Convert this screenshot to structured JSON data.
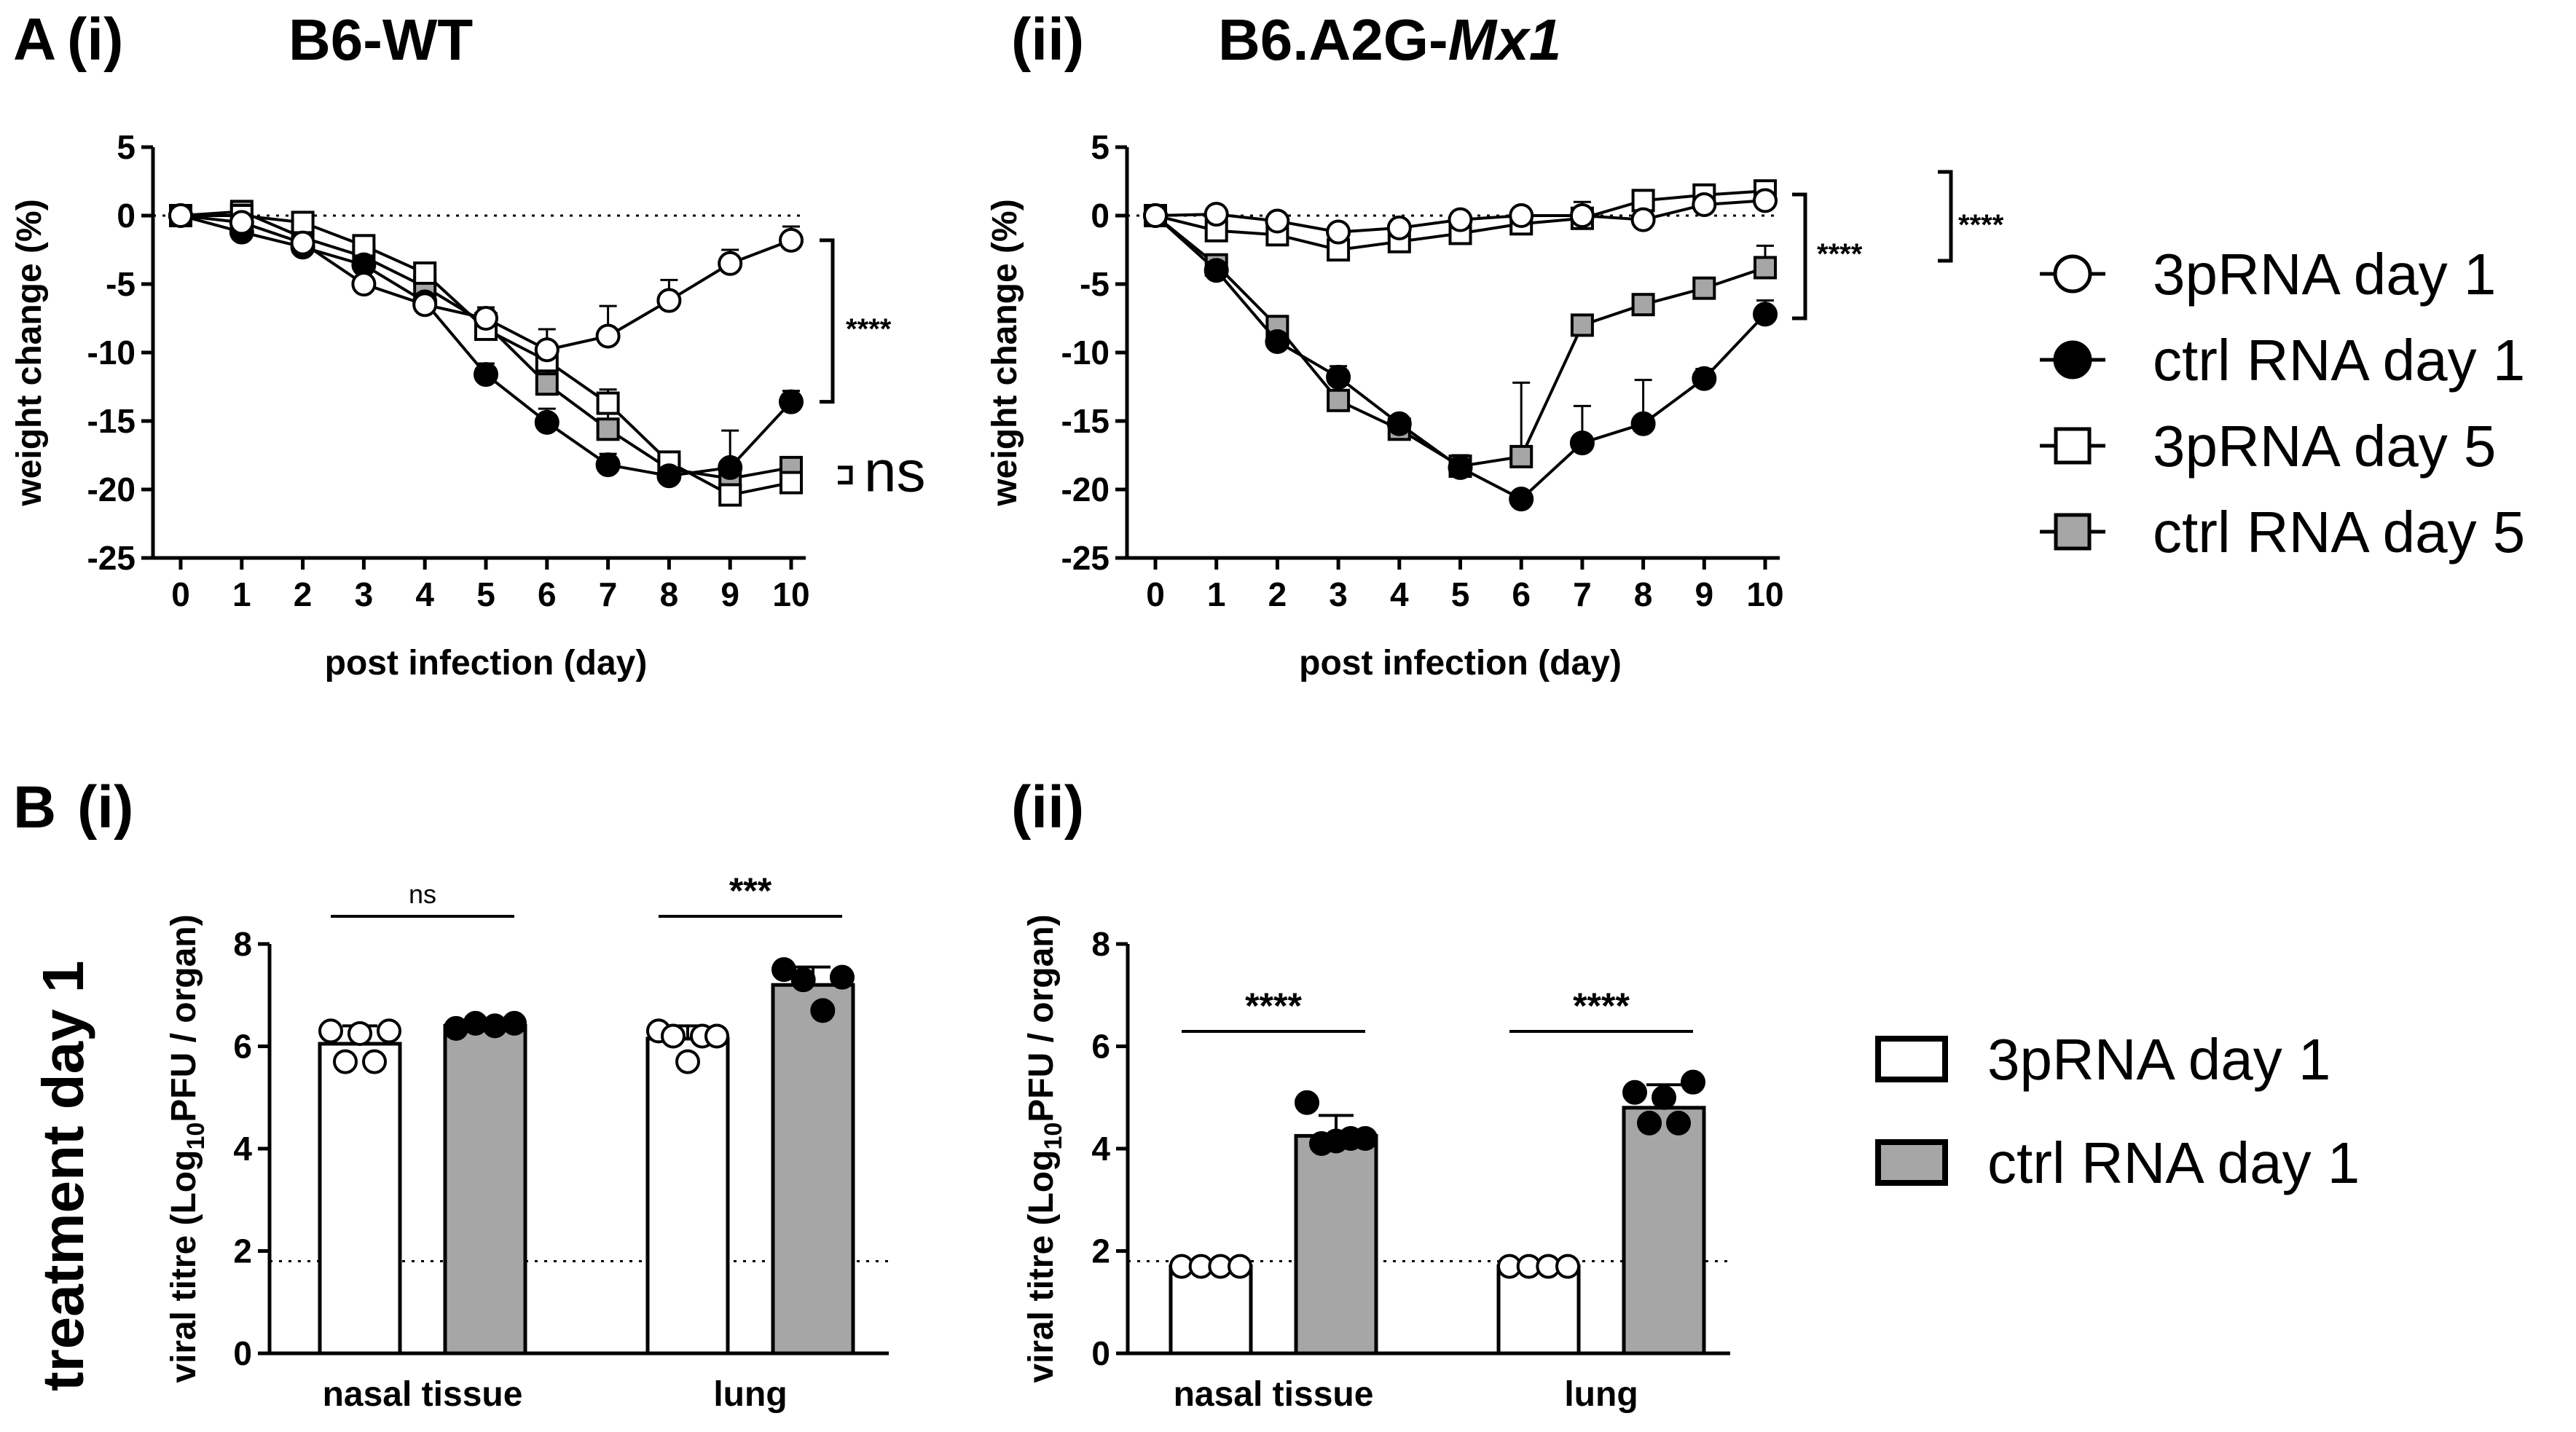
{
  "figure": {
    "panel_A_letter": "A",
    "panel_A_i": "(i)",
    "panel_A_ii": "(ii)",
    "strain_i": "B6-WT",
    "strain_ii_plain": "B6.A2G-",
    "strain_ii_italic": "Mx1",
    "panel_B_letter": "B",
    "panel_B_i": "(i)",
    "panel_B_ii": "(ii)",
    "treatment_label": "treatment day 1",
    "weight_ylabel": "weight change (%)",
    "weight_xlabel": "post infection (day)",
    "titre_ylabel_prefix": "viral titre (Log",
    "titre_ylabel_sub": "10",
    "titre_ylabel_suffix": "PFU / organ)"
  },
  "legend_A": [
    {
      "label": "3pRNA day 1",
      "marker": "circle",
      "fill": "#ffffff"
    },
    {
      "label": "ctrl RNA day 1",
      "marker": "circle",
      "fill": "#000000"
    },
    {
      "label": "3pRNA day 5",
      "marker": "square",
      "fill": "#ffffff"
    },
    {
      "label": "ctrl RNA day 5",
      "marker": "square",
      "fill": "#a6a6a6"
    }
  ],
  "legend_B": [
    {
      "label": "3pRNA day 1",
      "fill": "#ffffff"
    },
    {
      "label": "ctrl RNA day 1",
      "fill": "#a6a6a6"
    }
  ],
  "chart_data": [
    {
      "id": "Ai",
      "type": "line",
      "title": "B6-WT",
      "xlabel": "post infection (day)",
      "ylabel": "weight change (%)",
      "xlim": [
        0,
        10
      ],
      "ylim": [
        -25,
        5
      ],
      "xticks": [
        0,
        1,
        2,
        3,
        4,
        5,
        6,
        7,
        8,
        9,
        10
      ],
      "yticks": [
        5,
        0,
        -5,
        -10,
        -15,
        -20,
        -25
      ],
      "reference_line": 0,
      "x": [
        0,
        1,
        2,
        3,
        4,
        5,
        6,
        7,
        8,
        9,
        10
      ],
      "series": [
        {
          "name": "3pRNA day 1",
          "marker": "circle",
          "fill": "#ffffff",
          "values": [
            0,
            -0.5,
            -2.0,
            -5.0,
            -6.5,
            -7.5,
            -9.8,
            -8.8,
            -6.2,
            -3.5,
            -1.8
          ],
          "err": [
            0,
            0.3,
            0.3,
            0.4,
            0.5,
            0.8,
            1.5,
            2.2,
            1.5,
            1.0,
            1.0
          ]
        },
        {
          "name": "ctrl RNA day 1",
          "marker": "circle",
          "fill": "#000000",
          "values": [
            0,
            -1.2,
            -2.3,
            -3.6,
            -6.3,
            -11.6,
            -15.1,
            -18.2,
            -19.0,
            -18.4,
            -13.6
          ],
          "err": [
            0,
            0.3,
            0.3,
            0.5,
            0.5,
            0.8,
            1.0,
            0.8,
            0.6,
            2.7,
            0.8
          ]
        },
        {
          "name": "3pRNA day 5",
          "marker": "square",
          "fill": "#ffffff",
          "values": [
            0,
            0,
            -0.5,
            -2.2,
            -4.2,
            -8.3,
            -10.6,
            -13.7,
            -18.0,
            -20.4,
            -19.5
          ],
          "err": [
            0,
            0.3,
            0.3,
            0.4,
            0.5,
            0.8,
            1.0,
            1.0,
            0.5,
            0.5,
            0.5
          ]
        },
        {
          "name": "ctrl RNA day 5",
          "marker": "square",
          "fill": "#a6a6a6",
          "values": [
            0,
            0.3,
            -1.6,
            -3.0,
            -5.2,
            -7.9,
            -12.3,
            -15.6,
            -18.5,
            -19.2,
            -18.4
          ],
          "err": [
            0,
            0.3,
            0.3,
            0.4,
            0.6,
            1.0,
            1.5,
            1.2,
            0.8,
            0.6,
            0.6
          ]
        }
      ],
      "significance": [
        {
          "label": "****",
          "from_series": "3pRNA day 1",
          "to_series": "ctrl RNA day 1"
        },
        {
          "label": "ns",
          "from_series": "3pRNA day 5",
          "to_series": "ctrl RNA day 5"
        }
      ]
    },
    {
      "id": "Aii",
      "type": "line",
      "title": "B6.A2G-Mx1",
      "xlabel": "post infection (day)",
      "ylabel": "weight change (%)",
      "xlim": [
        0,
        10
      ],
      "ylim": [
        -25,
        5
      ],
      "xticks": [
        0,
        1,
        2,
        3,
        4,
        5,
        6,
        7,
        8,
        9,
        10
      ],
      "yticks": [
        5,
        0,
        -5,
        -10,
        -15,
        -20,
        -25
      ],
      "reference_line": 0,
      "x": [
        0,
        1,
        2,
        3,
        4,
        5,
        6,
        7,
        8,
        9,
        10
      ],
      "series": [
        {
          "name": "3pRNA day 1",
          "marker": "circle",
          "fill": "#ffffff",
          "values": [
            0,
            0.1,
            -0.4,
            -1.2,
            -0.9,
            -0.3,
            0,
            0,
            -0.3,
            0.8,
            1.1
          ],
          "err": [
            0,
            0.3,
            0.3,
            0.4,
            0.4,
            0.4,
            0.4,
            1.0,
            0.4,
            0.4,
            0.4
          ]
        },
        {
          "name": "ctrl RNA day 1",
          "marker": "circle",
          "fill": "#000000",
          "values": [
            0,
            -4.0,
            -9.2,
            -11.8,
            -15.2,
            -18.4,
            -20.7,
            -16.6,
            -15.2,
            -11.9,
            -7.2
          ],
          "err": [
            0,
            0.3,
            0.4,
            0.8,
            0.5,
            0.6,
            0.4,
            2.7,
            3.2,
            0.7,
            1.0
          ]
        },
        {
          "name": "3pRNA day 5",
          "marker": "square",
          "fill": "#ffffff",
          "values": [
            0,
            -1.1,
            -1.4,
            -2.5,
            -1.9,
            -1.3,
            -0.6,
            -0.2,
            1.1,
            1.5,
            1.8
          ],
          "err": [
            0,
            0.3,
            0.3,
            0.4,
            0.4,
            0.4,
            0.4,
            0.4,
            0.4,
            0.4,
            0.4
          ]
        },
        {
          "name": "ctrl RNA day 5",
          "marker": "square",
          "fill": "#a6a6a6",
          "values": [
            0,
            -3.6,
            -8.1,
            -13.5,
            -15.6,
            -18.3,
            -17.6,
            -8.0,
            -6.5,
            -5.3,
            -3.8
          ],
          "err": [
            0,
            0.3,
            0.5,
            0.6,
            0.5,
            0.8,
            5.4,
            0.6,
            0.5,
            0.5,
            1.6
          ]
        }
      ],
      "significance": [
        {
          "label": "****",
          "from_series": "3pRNA day 1",
          "to_series": "ctrl RNA day 1"
        },
        {
          "label": "****",
          "from_series": "3pRNA day 5",
          "to_series": "ctrl RNA day 5"
        }
      ]
    },
    {
      "id": "Bi",
      "type": "bar",
      "categories": [
        "nasal tissue",
        "lung"
      ],
      "ylabel": "viral titre (Log10 PFU / organ)",
      "ylim": [
        0,
        8
      ],
      "yticks": [
        0,
        2,
        4,
        6,
        8
      ],
      "detection_limit": 1.8,
      "series": [
        {
          "name": "3pRNA day 1",
          "fill": "#ffffff",
          "values": [
            6.05,
            6.15
          ],
          "err": [
            0.35,
            0.25
          ],
          "points": [
            [
              6.3,
              5.7,
              6.25,
              5.7,
              6.3
            ],
            [
              6.3,
              6.2,
              5.7,
              6.2,
              6.2
            ]
          ]
        },
        {
          "name": "ctrl RNA day 1",
          "fill": "#a6a6a6",
          "values": [
            6.4,
            7.2
          ],
          "err": [
            0.1,
            0.35
          ],
          "points": [
            [
              6.35,
              6.45,
              6.4,
              6.45
            ],
            [
              7.5,
              7.3,
              6.7,
              7.35
            ]
          ]
        }
      ],
      "significance": [
        "ns",
        "***"
      ]
    },
    {
      "id": "Bii",
      "type": "bar",
      "categories": [
        "nasal tissue",
        "lung"
      ],
      "ylabel": "viral titre (Log10 PFU / organ)",
      "ylim": [
        0,
        8
      ],
      "yticks": [
        0,
        2,
        4,
        6,
        8
      ],
      "detection_limit": 1.8,
      "series": [
        {
          "name": "3pRNA day 1",
          "fill": "#ffffff",
          "values": [
            1.7,
            1.7
          ],
          "err": [
            0,
            0
          ],
          "points": [
            [
              1.7,
              1.7,
              1.7,
              1.7
            ],
            [
              1.7,
              1.7,
              1.7,
              1.7
            ]
          ]
        },
        {
          "name": "ctrl RNA day 1",
          "fill": "#a6a6a6",
          "values": [
            4.25,
            4.8
          ],
          "err": [
            0.4,
            0.45
          ],
          "points": [
            [
              4.9,
              4.1,
              4.15,
              4.2,
              4.2
            ],
            [
              5.1,
              4.5,
              5.0,
              4.5,
              5.3
            ]
          ]
        }
      ],
      "significance": [
        "****",
        "****"
      ]
    }
  ]
}
